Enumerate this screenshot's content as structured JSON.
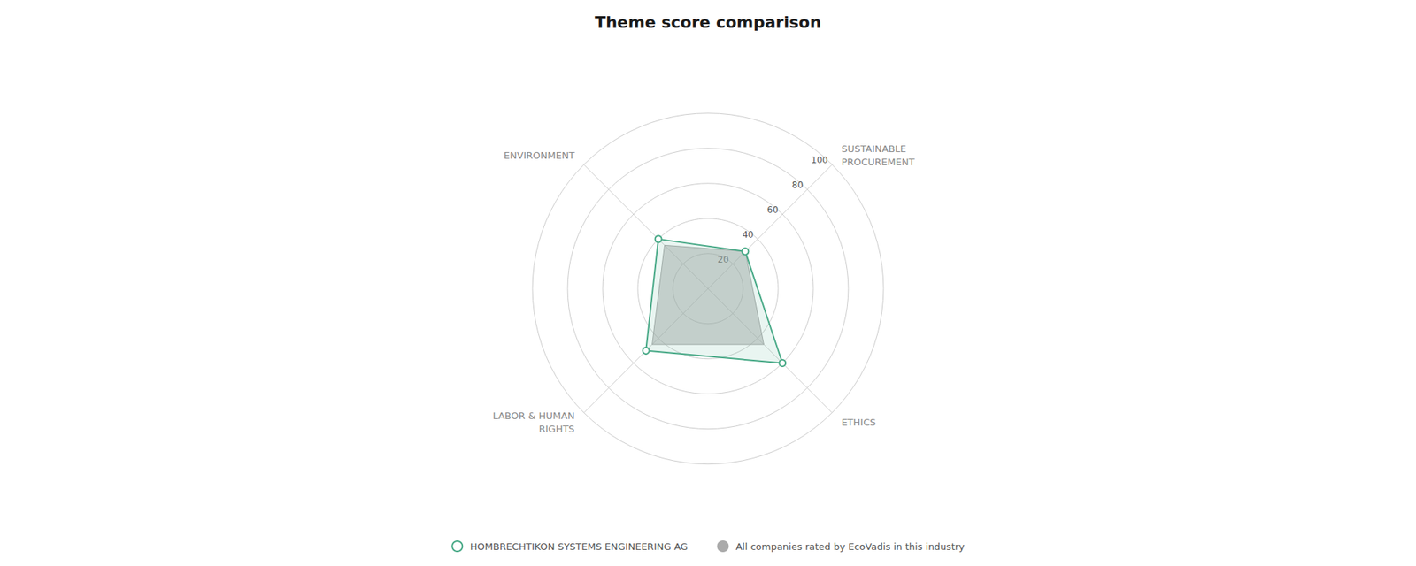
{
  "chart_data": {
    "type": "radar",
    "title": "Theme score comparison",
    "categories": [
      "ENVIRONMENT",
      "LABOR & HUMAN\nRIGHTS",
      "ETHICS",
      "SUSTAINABLE\nPROCUREMENT"
    ],
    "series": [
      {
        "name": "HOMBRECHTIKON SYSTEMS ENGINEERING AG",
        "color": "#4aaa88",
        "values": [
          40,
          50,
          60,
          30
        ],
        "marker": "circle"
      },
      {
        "name": "All companies rated by EcoVadis in this industry",
        "color": "#aaaaaa",
        "values": [
          35,
          45,
          45,
          30
        ],
        "marker": "none"
      }
    ],
    "ylim": [
      0,
      100
    ],
    "yticks": [
      20,
      40,
      60,
      80,
      100
    ],
    "grid": true,
    "legend": "bottom"
  }
}
